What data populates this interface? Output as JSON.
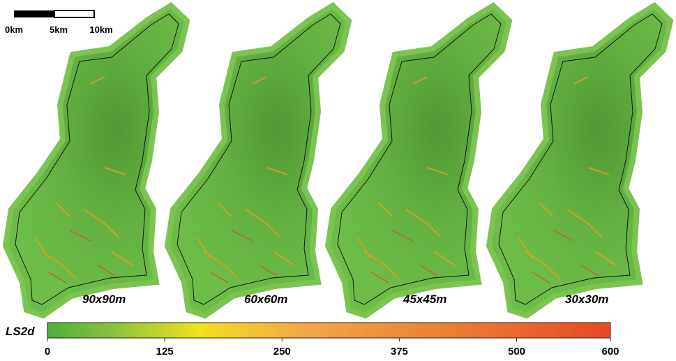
{
  "scale_bar": {
    "labels": [
      "0km",
      "5km",
      "10km"
    ]
  },
  "panels": [
    {
      "label": "90x90m"
    },
    {
      "label": "60x60m"
    },
    {
      "label": "45x45m"
    },
    {
      "label": "30x30m"
    }
  ],
  "legend": {
    "title": "LS2d",
    "range": [
      0,
      600
    ],
    "ticks": [
      0,
      125,
      250,
      375,
      500,
      600
    ]
  }
}
